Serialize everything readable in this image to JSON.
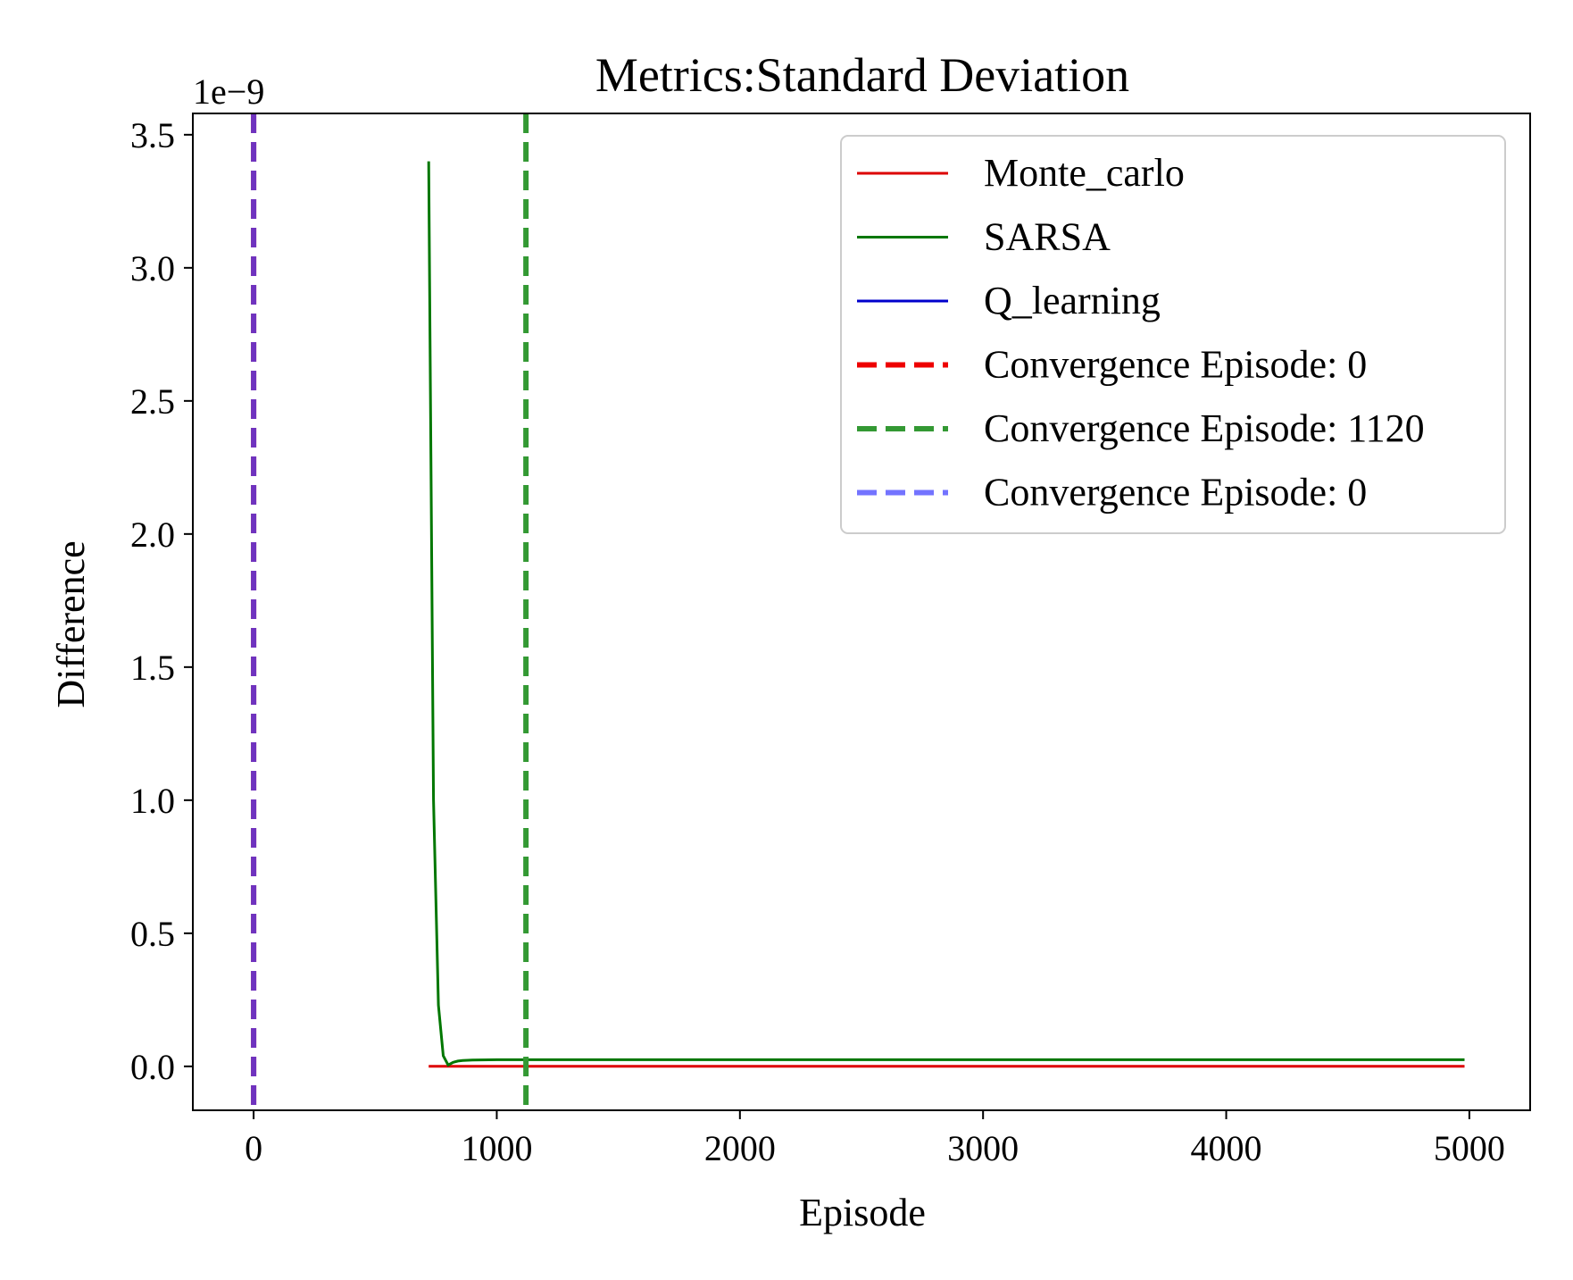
{
  "chart_data": {
    "type": "line",
    "title": "Metrics:Standard Deviation",
    "xlabel": "Episode",
    "ylabel": "Difference",
    "y_offset_label": "1e−9",
    "y_scale_factor": 1e-09,
    "xlim": [
      -250,
      5250
    ],
    "ylim": [
      -0.165,
      3.58
    ],
    "xticks": [
      0,
      1000,
      2000,
      3000,
      4000,
      5000
    ],
    "xtick_labels": [
      "0",
      "1000",
      "2000",
      "3000",
      "4000",
      "5000"
    ],
    "yticks": [
      0.0,
      0.5,
      1.0,
      1.5,
      2.0,
      2.5,
      3.0,
      3.5
    ],
    "ytick_labels": [
      "0.0",
      "0.5",
      "1.0",
      "1.5",
      "2.0",
      "2.5",
      "3.0",
      "3.5"
    ],
    "grid": false,
    "legend_position": "top-right",
    "series": [
      {
        "name": "Monte_carlo",
        "color": "#dd0000",
        "style": "solid",
        "x": [
          720,
          4980
        ],
        "y": [
          0.0,
          0.0
        ]
      },
      {
        "name": "SARSA",
        "color": "#007700",
        "style": "solid",
        "x": [
          720,
          740,
          760,
          780,
          800,
          820,
          840,
          860,
          900,
          1000,
          1500,
          2000,
          3000,
          4000,
          4980
        ],
        "y": [
          3.4,
          1.0,
          0.23,
          0.04,
          0.005,
          0.015,
          0.02,
          0.022,
          0.024,
          0.025,
          0.025,
          0.025,
          0.025,
          0.025,
          0.025
        ]
      },
      {
        "name": "Q_learning",
        "color": "#0000cc",
        "style": "solid",
        "x": [],
        "y": []
      }
    ],
    "vlines": [
      {
        "label": "Convergence Episode: 0",
        "x": 0,
        "color": "#ee0000",
        "opacity": 1.0
      },
      {
        "label": "Convergence Episode: 1120",
        "x": 1120,
        "color": "#339933",
        "opacity": 1.0
      },
      {
        "label": "Convergence Episode: 0",
        "x": 0,
        "color": "#4444ff",
        "opacity": 0.75
      }
    ]
  }
}
